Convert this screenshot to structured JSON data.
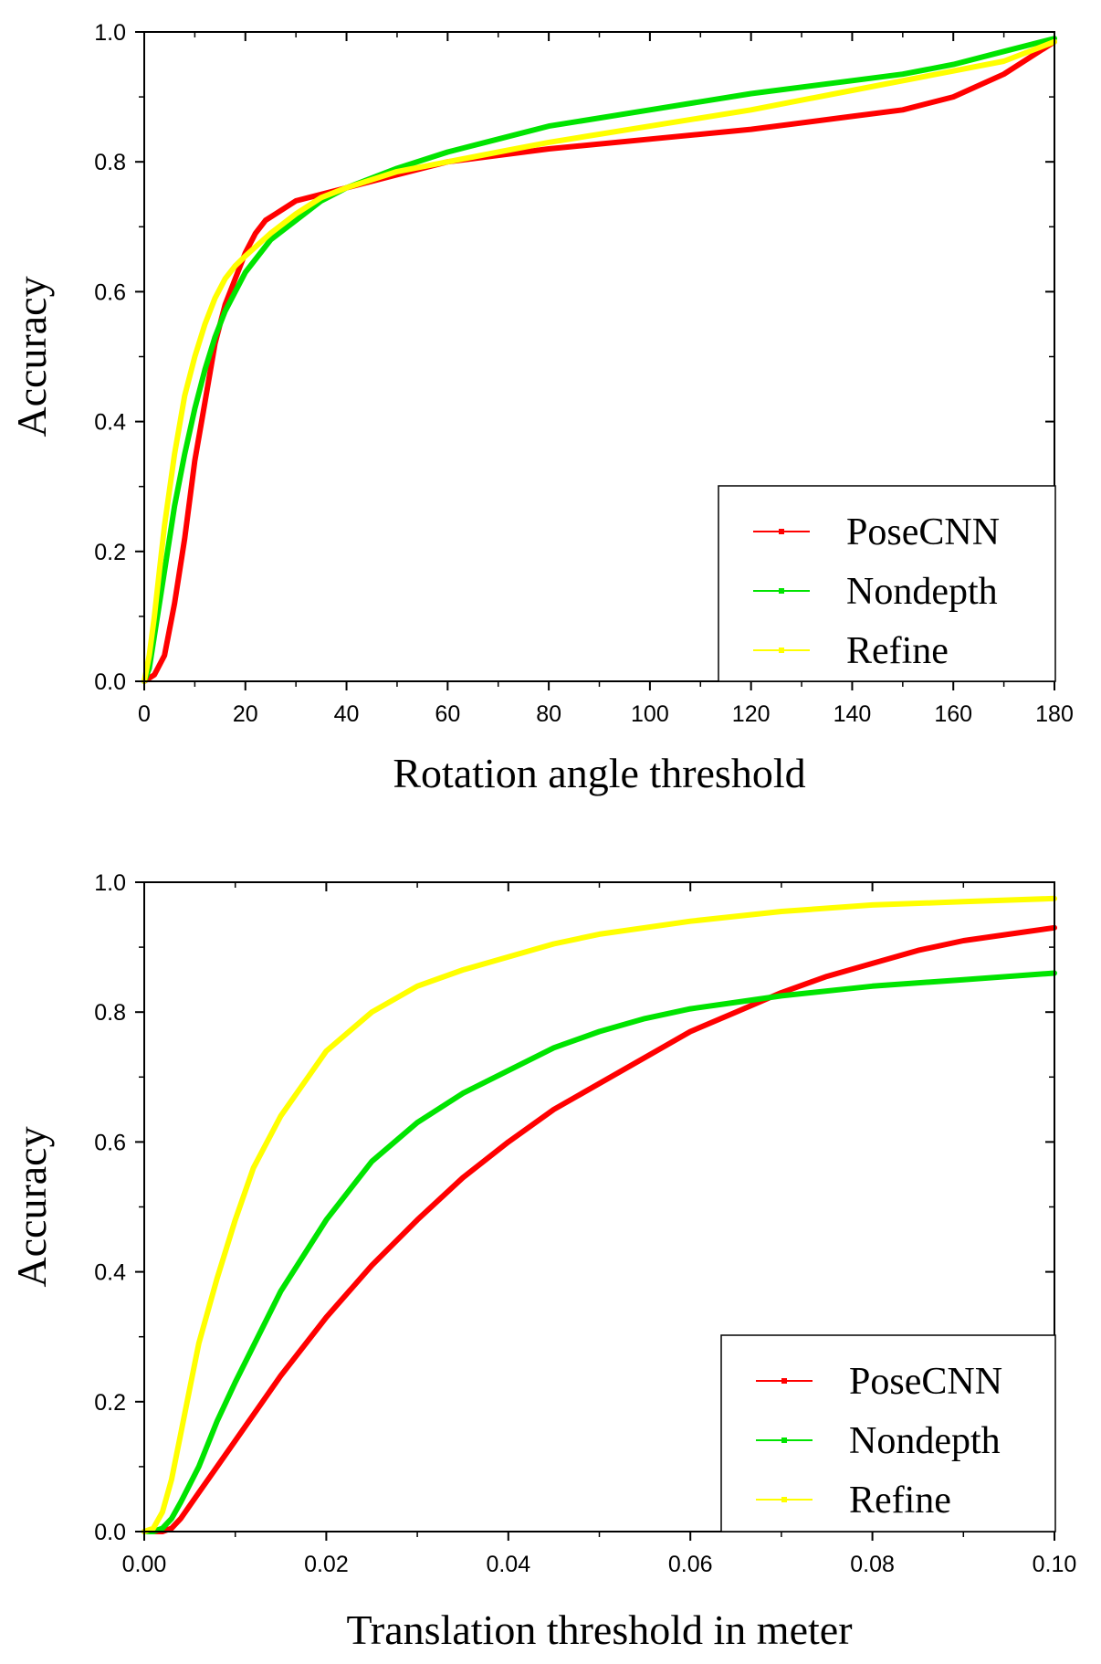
{
  "chart_data": [
    {
      "type": "line",
      "title": "",
      "xlabel": "Rotation angle threshold",
      "ylabel": "Accuracy",
      "xlim": [
        0,
        180
      ],
      "ylim": [
        0,
        1.0
      ],
      "x_ticks": [
        "0",
        "20",
        "40",
        "60",
        "80",
        "100",
        "120",
        "140",
        "160",
        "180"
      ],
      "y_ticks": [
        "0.0",
        "0.2",
        "0.4",
        "0.6",
        "0.8",
        "1.0"
      ],
      "grid": false,
      "legend_position": "bottom-right",
      "series": [
        {
          "name": "PoseCNN",
          "color": "#ff0000",
          "points": [
            [
              0,
              0
            ],
            [
              2,
              0.01
            ],
            [
              4,
              0.04
            ],
            [
              6,
              0.12
            ],
            [
              8,
              0.22
            ],
            [
              10,
              0.34
            ],
            [
              12,
              0.43
            ],
            [
              14,
              0.52
            ],
            [
              16,
              0.58
            ],
            [
              18,
              0.62
            ],
            [
              20,
              0.66
            ],
            [
              22,
              0.69
            ],
            [
              24,
              0.71
            ],
            [
              26,
              0.72
            ],
            [
              30,
              0.74
            ],
            [
              35,
              0.75
            ],
            [
              40,
              0.76
            ],
            [
              45,
              0.77
            ],
            [
              50,
              0.78
            ],
            [
              60,
              0.8
            ],
            [
              70,
              0.81
            ],
            [
              80,
              0.82
            ],
            [
              100,
              0.835
            ],
            [
              120,
              0.85
            ],
            [
              140,
              0.87
            ],
            [
              150,
              0.88
            ],
            [
              160,
              0.9
            ],
            [
              170,
              0.935
            ],
            [
              180,
              0.985
            ]
          ]
        },
        {
          "name": "Nondepth",
          "color": "#00e400",
          "points": [
            [
              0,
              0
            ],
            [
              1,
              0.02
            ],
            [
              2,
              0.07
            ],
            [
              4,
              0.17
            ],
            [
              6,
              0.27
            ],
            [
              8,
              0.35
            ],
            [
              10,
              0.42
            ],
            [
              12,
              0.48
            ],
            [
              14,
              0.53
            ],
            [
              16,
              0.57
            ],
            [
              18,
              0.6
            ],
            [
              20,
              0.63
            ],
            [
              25,
              0.68
            ],
            [
              30,
              0.71
            ],
            [
              35,
              0.74
            ],
            [
              40,
              0.76
            ],
            [
              50,
              0.79
            ],
            [
              60,
              0.815
            ],
            [
              70,
              0.835
            ],
            [
              80,
              0.855
            ],
            [
              100,
              0.88
            ],
            [
              120,
              0.905
            ],
            [
              140,
              0.925
            ],
            [
              150,
              0.935
            ],
            [
              160,
              0.95
            ],
            [
              170,
              0.97
            ],
            [
              180,
              0.99
            ]
          ]
        },
        {
          "name": "Refine",
          "color": "#ffff00",
          "points": [
            [
              0,
              0
            ],
            [
              1,
              0.04
            ],
            [
              2,
              0.1
            ],
            [
              3,
              0.17
            ],
            [
              4,
              0.24
            ],
            [
              6,
              0.35
            ],
            [
              8,
              0.44
            ],
            [
              10,
              0.5
            ],
            [
              12,
              0.55
            ],
            [
              14,
              0.59
            ],
            [
              16,
              0.62
            ],
            [
              18,
              0.64
            ],
            [
              20,
              0.655
            ],
            [
              25,
              0.69
            ],
            [
              30,
              0.72
            ],
            [
              35,
              0.745
            ],
            [
              40,
              0.76
            ],
            [
              50,
              0.785
            ],
            [
              60,
              0.8
            ],
            [
              70,
              0.815
            ],
            [
              80,
              0.83
            ],
            [
              100,
              0.855
            ],
            [
              120,
              0.88
            ],
            [
              140,
              0.91
            ],
            [
              160,
              0.94
            ],
            [
              170,
              0.955
            ],
            [
              180,
              0.985
            ]
          ]
        }
      ]
    },
    {
      "type": "line",
      "title": "",
      "xlabel": "Translation threshold in meter",
      "ylabel": "Accuracy",
      "xlim": [
        0,
        0.1
      ],
      "ylim": [
        0,
        1.0
      ],
      "x_ticks": [
        "0.00",
        "0.02",
        "0.04",
        "0.06",
        "0.08",
        "0.10"
      ],
      "y_ticks": [
        "0.0",
        "0.2",
        "0.4",
        "0.6",
        "0.8",
        "1.0"
      ],
      "grid": false,
      "legend_position": "bottom-right",
      "series": [
        {
          "name": "PoseCNN",
          "color": "#ff0000",
          "points": [
            [
              0,
              0
            ],
            [
              0.002,
              0
            ],
            [
              0.003,
              0.005
            ],
            [
              0.004,
              0.02
            ],
            [
              0.006,
              0.06
            ],
            [
              0.008,
              0.1
            ],
            [
              0.01,
              0.14
            ],
            [
              0.015,
              0.24
            ],
            [
              0.02,
              0.33
            ],
            [
              0.025,
              0.41
            ],
            [
              0.03,
              0.48
            ],
            [
              0.035,
              0.545
            ],
            [
              0.04,
              0.6
            ],
            [
              0.045,
              0.65
            ],
            [
              0.05,
              0.69
            ],
            [
              0.055,
              0.73
            ],
            [
              0.06,
              0.77
            ],
            [
              0.065,
              0.8
            ],
            [
              0.07,
              0.83
            ],
            [
              0.075,
              0.855
            ],
            [
              0.08,
              0.875
            ],
            [
              0.085,
              0.895
            ],
            [
              0.09,
              0.91
            ],
            [
              0.095,
              0.92
            ],
            [
              0.1,
              0.93
            ]
          ]
        },
        {
          "name": "Nondepth",
          "color": "#00e400",
          "points": [
            [
              0,
              0
            ],
            [
              0.001,
              0
            ],
            [
              0.002,
              0.005
            ],
            [
              0.003,
              0.02
            ],
            [
              0.004,
              0.045
            ],
            [
              0.006,
              0.1
            ],
            [
              0.008,
              0.17
            ],
            [
              0.01,
              0.23
            ],
            [
              0.015,
              0.37
            ],
            [
              0.02,
              0.48
            ],
            [
              0.025,
              0.57
            ],
            [
              0.03,
              0.63
            ],
            [
              0.035,
              0.675
            ],
            [
              0.04,
              0.71
            ],
            [
              0.045,
              0.745
            ],
            [
              0.05,
              0.77
            ],
            [
              0.055,
              0.79
            ],
            [
              0.06,
              0.805
            ],
            [
              0.065,
              0.815
            ],
            [
              0.07,
              0.825
            ],
            [
              0.08,
              0.84
            ],
            [
              0.09,
              0.85
            ],
            [
              0.1,
              0.86
            ]
          ]
        },
        {
          "name": "Refine",
          "color": "#ffff00",
          "points": [
            [
              0,
              0
            ],
            [
              0.001,
              0.005
            ],
            [
              0.002,
              0.03
            ],
            [
              0.003,
              0.08
            ],
            [
              0.004,
              0.15
            ],
            [
              0.005,
              0.22
            ],
            [
              0.006,
              0.29
            ],
            [
              0.008,
              0.39
            ],
            [
              0.01,
              0.48
            ],
            [
              0.012,
              0.56
            ],
            [
              0.015,
              0.64
            ],
            [
              0.018,
              0.7
            ],
            [
              0.02,
              0.74
            ],
            [
              0.025,
              0.8
            ],
            [
              0.03,
              0.84
            ],
            [
              0.035,
              0.865
            ],
            [
              0.04,
              0.885
            ],
            [
              0.045,
              0.905
            ],
            [
              0.05,
              0.92
            ],
            [
              0.06,
              0.94
            ],
            [
              0.07,
              0.955
            ],
            [
              0.08,
              0.965
            ],
            [
              0.09,
              0.97
            ],
            [
              0.1,
              0.975
            ]
          ]
        }
      ]
    }
  ]
}
